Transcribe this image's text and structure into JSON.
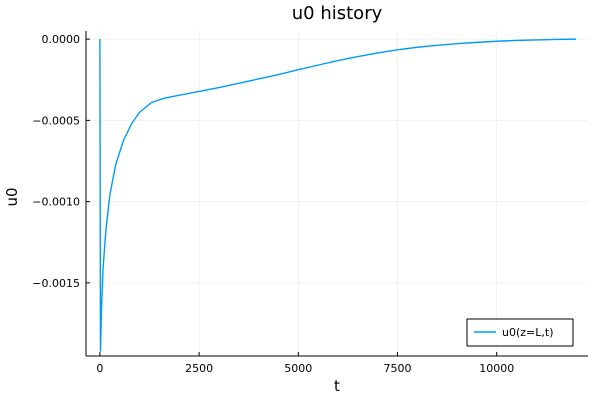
{
  "chart_data": {
    "type": "line",
    "title": "u0 history",
    "xlabel": "t",
    "ylabel": "u0",
    "xlim": [
      -350,
      12300
    ],
    "ylim": [
      -0.00195,
      5e-05
    ],
    "x_ticks": [
      0,
      2500,
      5000,
      7500,
      10000
    ],
    "x_tick_labels": [
      "0",
      "2500",
      "5000",
      "7500",
      "10000"
    ],
    "y_ticks": [
      0.0,
      -0.0005,
      -0.001,
      -0.0015
    ],
    "y_tick_labels": [
      "0.0000",
      "−0.0005",
      "−0.0010",
      "−0.0015"
    ],
    "grid": true,
    "legend_position": "bottom-right",
    "series": [
      {
        "name": "u0(z=L,t)",
        "color": "#009af9",
        "x": [
          0,
          15,
          40,
          80,
          150,
          250,
          400,
          600,
          800,
          1000,
          1300,
          1600,
          2000,
          2500,
          3000,
          3500,
          4000,
          4500,
          5000,
          5500,
          6000,
          6500,
          7000,
          7500,
          8000,
          8500,
          9000,
          9500,
          10000,
          10500,
          11000,
          11500,
          12000
        ],
        "y": [
          0.0,
          -0.00192,
          -0.00166,
          -0.00141,
          -0.00118,
          -0.00096,
          -0.00077,
          -0.00062,
          -0.00052,
          -0.00045,
          -0.00039,
          -0.000365,
          -0.000345,
          -0.000322,
          -0.000298,
          -0.000272,
          -0.000245,
          -0.000218,
          -0.000188,
          -0.00016,
          -0.000132,
          -0.000107,
          -8.5e-05,
          -6.6e-05,
          -5e-05,
          -3.8e-05,
          -2.8e-05,
          -2e-05,
          -1.3e-05,
          -8e-06,
          -5e-06,
          -2e-06,
          0.0
        ]
      }
    ]
  }
}
